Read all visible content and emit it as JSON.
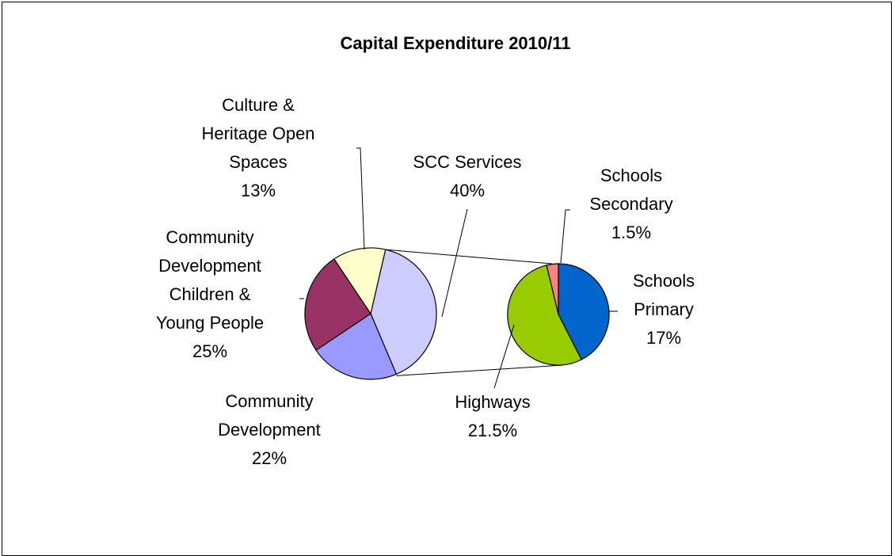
{
  "chart_data": {
    "type": "pie",
    "title": "Capital Expenditure 2010/11",
    "main_pie": [
      {
        "label_lines": [
          "SCC Services",
          "40%"
        ],
        "value": 40,
        "color": "#ccccff"
      },
      {
        "label_lines": [
          "Community",
          "Development",
          "22%"
        ],
        "value": 22,
        "color": "#9999ff"
      },
      {
        "label_lines": [
          "Community",
          "Development",
          "Children &",
          "Young People",
          "25%"
        ],
        "value": 25,
        "color": "#993366"
      },
      {
        "label_lines": [
          "Culture &",
          "Heritage Open",
          "Spaces",
          "13%"
        ],
        "value": 13,
        "color": "#ffffcc"
      }
    ],
    "secondary_pie": [
      {
        "label_lines": [
          "Schools",
          "Primary",
          "17%"
        ],
        "value": 17,
        "color": "#0066cc"
      },
      {
        "label_lines": [
          "Highways",
          "21.5%"
        ],
        "value": 21.5,
        "color": "#99cc00"
      },
      {
        "label_lines": [
          "Schools",
          "Secondary",
          "1.5%"
        ],
        "value": 1.5,
        "color": "#ff8080"
      }
    ],
    "legend": "none"
  }
}
